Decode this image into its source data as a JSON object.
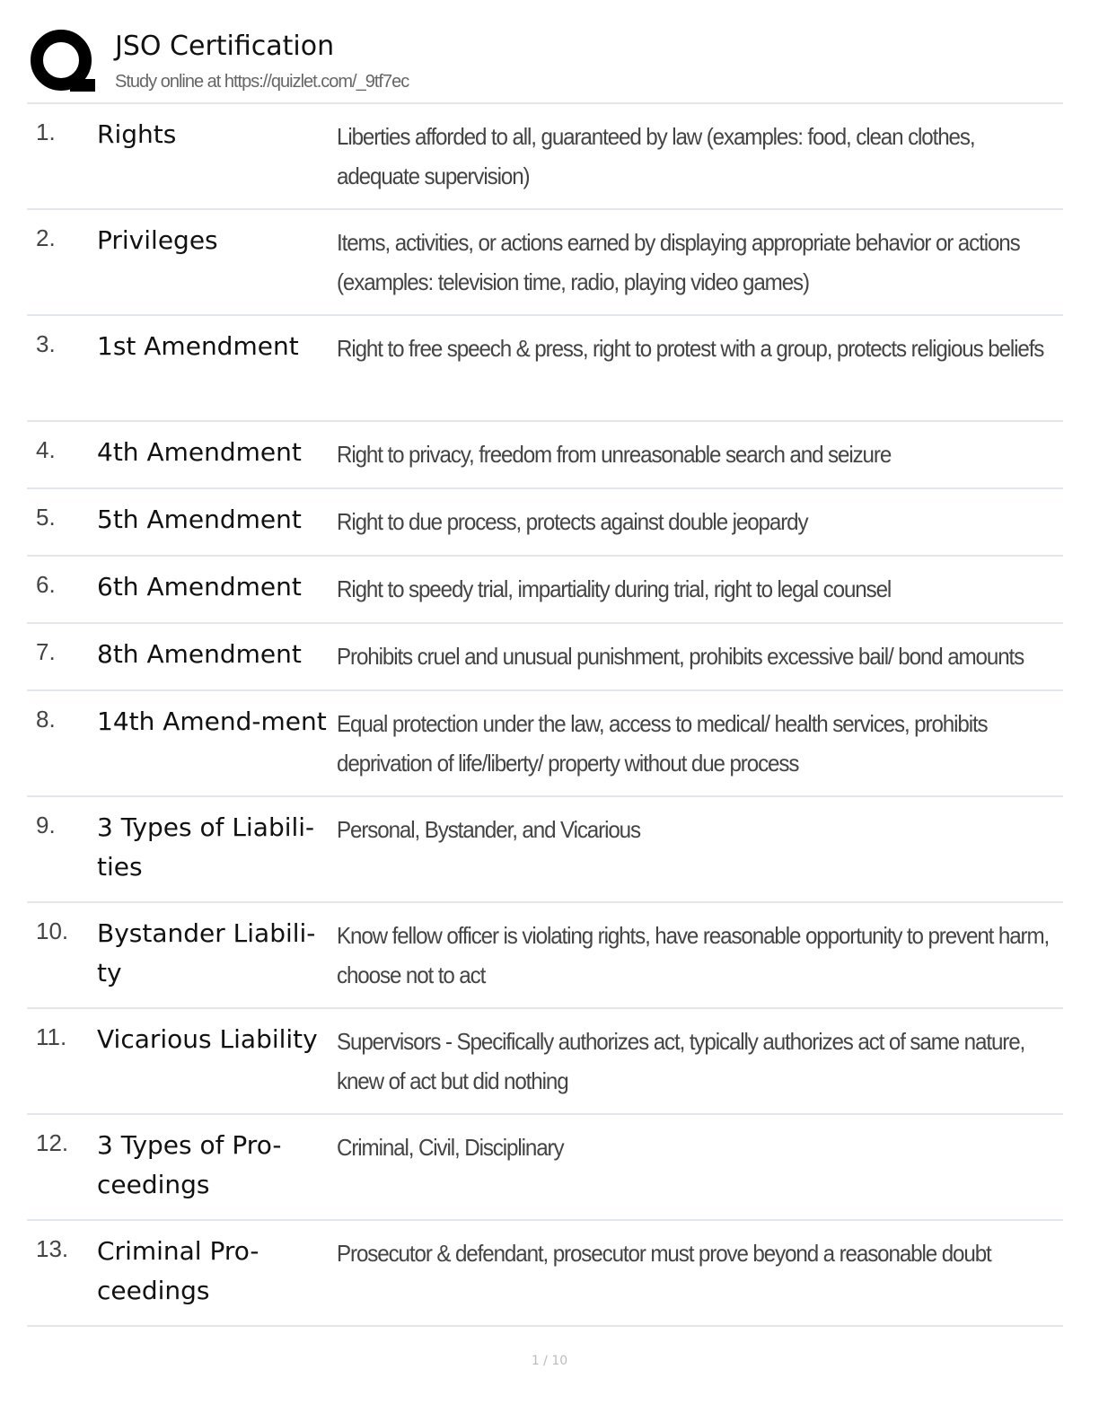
{
  "header": {
    "title": "JSO Certification",
    "subtitle": "Study online at https://quizlet.com/_9tf7ec"
  },
  "cards": [
    {
      "num": "1.",
      "term": "Rights",
      "definition": "Liberties afforded to all, guaranteed by law (examples: food, clean clothes, adequate supervision)"
    },
    {
      "num": "2.",
      "term": "Privileges",
      "definition": "Items, activities, or actions earned by displaying appropriate behavior or actions (examples: television time, radio, playing video games)"
    },
    {
      "num": "3.",
      "term": "1st Amendment",
      "definition": "Right to free speech & press, right to protest with a group, protects religious beliefs"
    },
    {
      "num": "4.",
      "term": "4th Amendment",
      "definition": "Right to privacy, freedom from unreasonable search and seizure"
    },
    {
      "num": "5.",
      "term": "5th Amendment",
      "definition": "Right to due process, protects against double jeopardy"
    },
    {
      "num": "6.",
      "term": "6th Amendment",
      "definition": "Right to speedy trial, impartiality during trial, right to legal counsel"
    },
    {
      "num": "7.",
      "term": "8th Amendment",
      "definition": "Prohibits cruel and unusual punishment, prohibits excessive bail/ bond amounts"
    },
    {
      "num": "8.",
      "term": "14th Amend-ment",
      "definition": "Equal protection under the law, access to medical/ health services, prohibits deprivation of life/liberty/ property without due process"
    },
    {
      "num": "9.",
      "term": "3 Types of Liabili-ties",
      "definition": "Personal, Bystander, and Vicarious"
    },
    {
      "num": "10.",
      "term": "Bystander Liabili-ty",
      "definition": "Know fellow officer is violating rights, have reasonable opportunity to prevent harm, choose not to act"
    },
    {
      "num": "11.",
      "term": "Vicarious Liability",
      "definition": "Supervisors - Specifically authorizes act, typically authorizes act of same nature, knew of act but did nothing"
    },
    {
      "num": "12.",
      "term": "3 Types of Pro-ceedings",
      "definition": "Criminal, Civil, Disciplinary"
    },
    {
      "num": "13.",
      "term": "Criminal Pro-ceedings",
      "definition": "Prosecutor & defendant, prosecutor must prove beyond a reasonable doubt"
    }
  ],
  "footer": {
    "page": "1 / 10"
  }
}
